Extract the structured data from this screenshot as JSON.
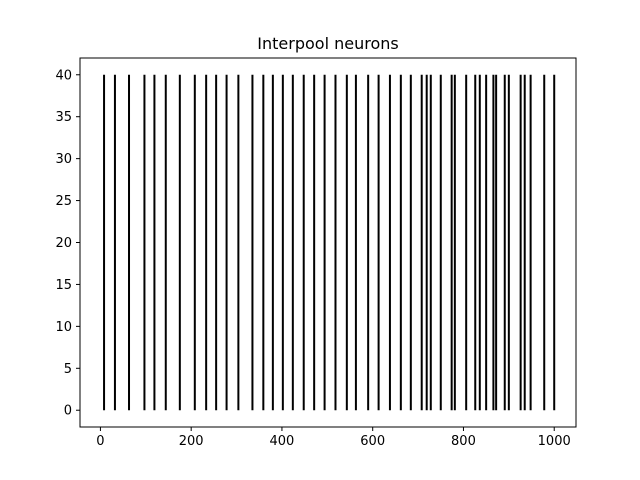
{
  "chart_data": {
    "type": "spike-raster",
    "title": "Interpool neurons",
    "xlabel": "",
    "ylabel": "",
    "xlim": [
      -45,
      1048
    ],
    "ylim": [
      -2,
      42
    ],
    "x_ticks": [
      0,
      200,
      400,
      600,
      800,
      1000
    ],
    "y_ticks": [
      0,
      5,
      10,
      15,
      20,
      25,
      30,
      35,
      40
    ],
    "grid": false,
    "legend": "none",
    "line_color": "#000000",
    "segment_y": [
      0,
      40
    ],
    "spike_times": [
      8,
      32,
      63,
      97,
      119,
      144,
      175,
      208,
      233,
      255,
      278,
      304,
      335,
      359,
      380,
      402,
      424,
      448,
      471,
      494,
      518,
      543,
      563,
      590,
      613,
      638,
      662,
      684,
      708,
      719,
      728,
      750,
      774,
      781,
      806,
      826,
      836,
      850,
      866,
      872,
      891,
      900,
      926,
      935,
      948,
      978,
      1000
    ]
  }
}
